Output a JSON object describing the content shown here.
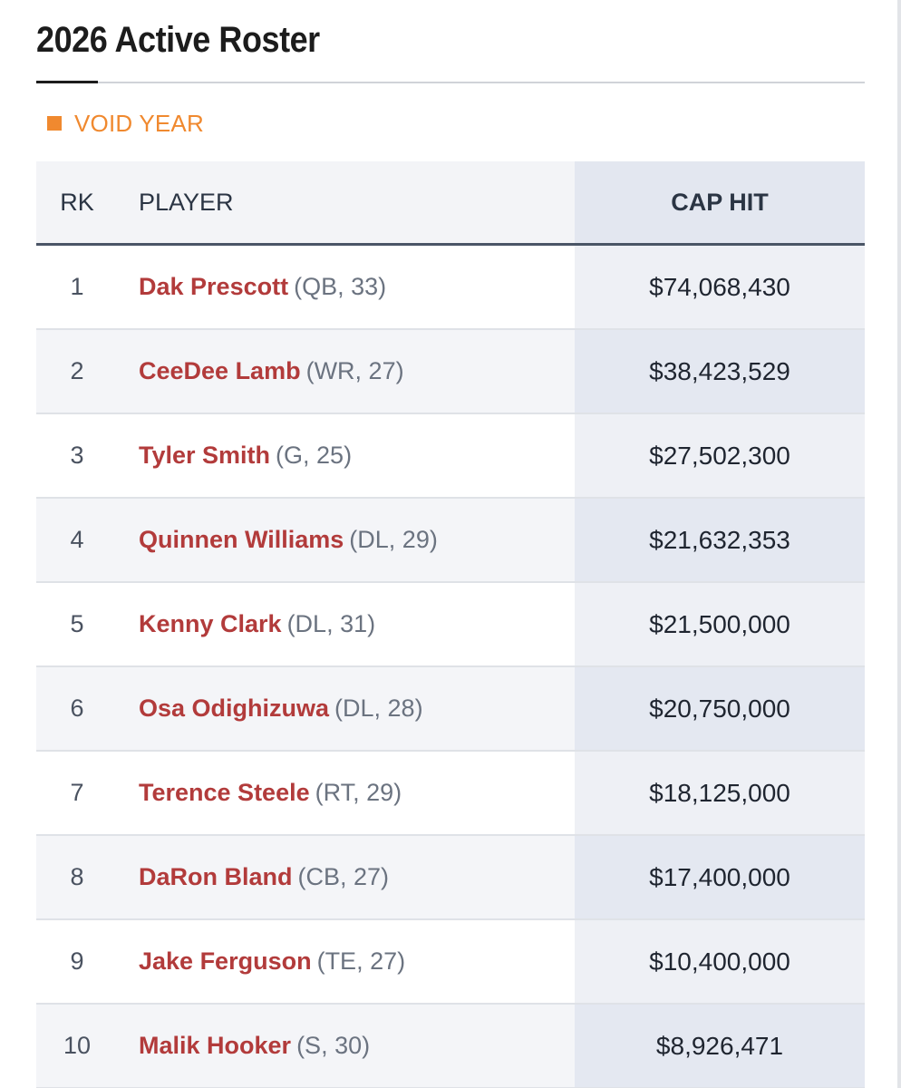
{
  "title": "2026 Active Roster",
  "legend": {
    "label": "VOID YEAR",
    "color": "#f0892f"
  },
  "table": {
    "headers": {
      "rank": "RK",
      "player": "PLAYER",
      "cap_hit": "CAP HIT"
    },
    "rows": [
      {
        "rank": "1",
        "name": "Dak Prescott",
        "meta": "(QB, 33)",
        "cap_hit": "$74,068,430"
      },
      {
        "rank": "2",
        "name": "CeeDee Lamb",
        "meta": "(WR, 27)",
        "cap_hit": "$38,423,529"
      },
      {
        "rank": "3",
        "name": "Tyler Smith",
        "meta": "(G, 25)",
        "cap_hit": "$27,502,300"
      },
      {
        "rank": "4",
        "name": "Quinnen Williams",
        "meta": "(DL, 29)",
        "cap_hit": "$21,632,353"
      },
      {
        "rank": "5",
        "name": "Kenny Clark",
        "meta": "(DL, 31)",
        "cap_hit": "$21,500,000"
      },
      {
        "rank": "6",
        "name": "Osa Odighizuwa",
        "meta": "(DL, 28)",
        "cap_hit": "$20,750,000"
      },
      {
        "rank": "7",
        "name": "Terence Steele",
        "meta": "(RT, 29)",
        "cap_hit": "$18,125,000"
      },
      {
        "rank": "8",
        "name": "DaRon Bland",
        "meta": "(CB, 27)",
        "cap_hit": "$17,400,000"
      },
      {
        "rank": "9",
        "name": "Jake Ferguson",
        "meta": "(TE, 27)",
        "cap_hit": "$10,400,000"
      },
      {
        "rank": "10",
        "name": "Malik Hooker",
        "meta": "(S, 30)",
        "cap_hit": "$8,926,471"
      }
    ]
  },
  "colors": {
    "player_link": "#b23b3b",
    "header_rule": "#4a5566",
    "accent": "#f0892f"
  }
}
